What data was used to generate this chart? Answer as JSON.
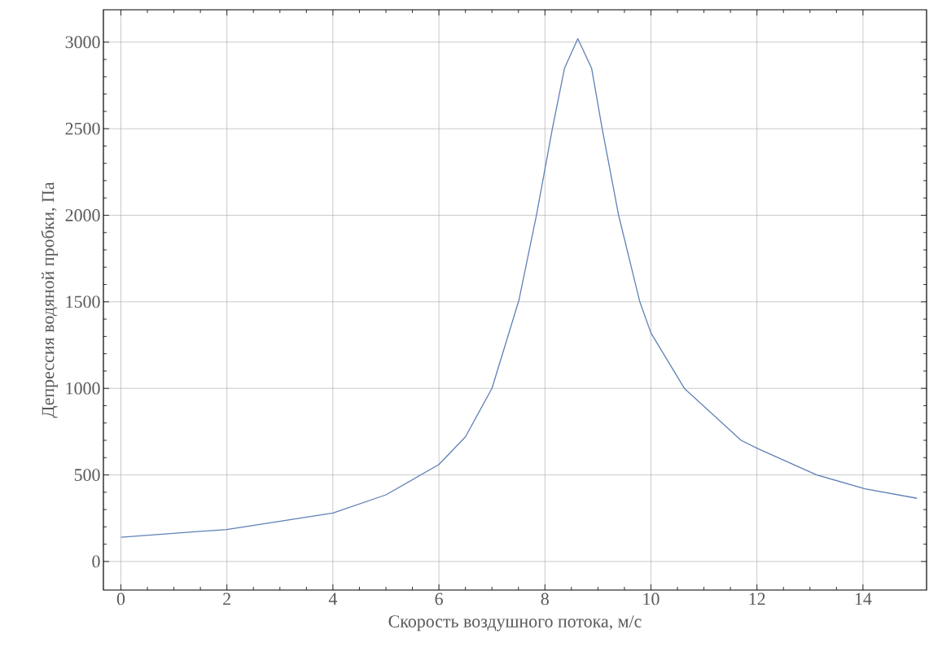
{
  "chart_data": {
    "type": "line",
    "xlabel": "Скорость воздушного потока, м/с",
    "ylabel": "Депрессия водяной пробки,  Па",
    "xlim": [
      -0.33,
      15.2
    ],
    "ylim": [
      -165,
      3187
    ],
    "xticks": [
      0,
      2,
      4,
      6,
      8,
      10,
      12,
      14
    ],
    "yticks": [
      0,
      500,
      1000,
      1500,
      2000,
      2500,
      3000
    ],
    "grid": true,
    "marker": "none",
    "line_style": "solid",
    "series": [
      {
        "color": "#5e81b5",
        "x": [
          0,
          2,
          4,
          5,
          6,
          6.5,
          7,
          7.51,
          7.84,
          8.14,
          8.37,
          8.62,
          8.88,
          9.08,
          9.39,
          9.79,
          10,
          10.63,
          11.7,
          12.03,
          13.13,
          14.04,
          15.02
        ],
        "values": [
          140,
          185,
          280,
          385,
          560,
          720,
          1000,
          1510,
          2000,
          2500,
          2850,
          3020,
          2850,
          2500,
          2000,
          1500,
          1320,
          1000,
          700,
          650,
          500,
          420,
          365
        ]
      }
    ]
  }
}
